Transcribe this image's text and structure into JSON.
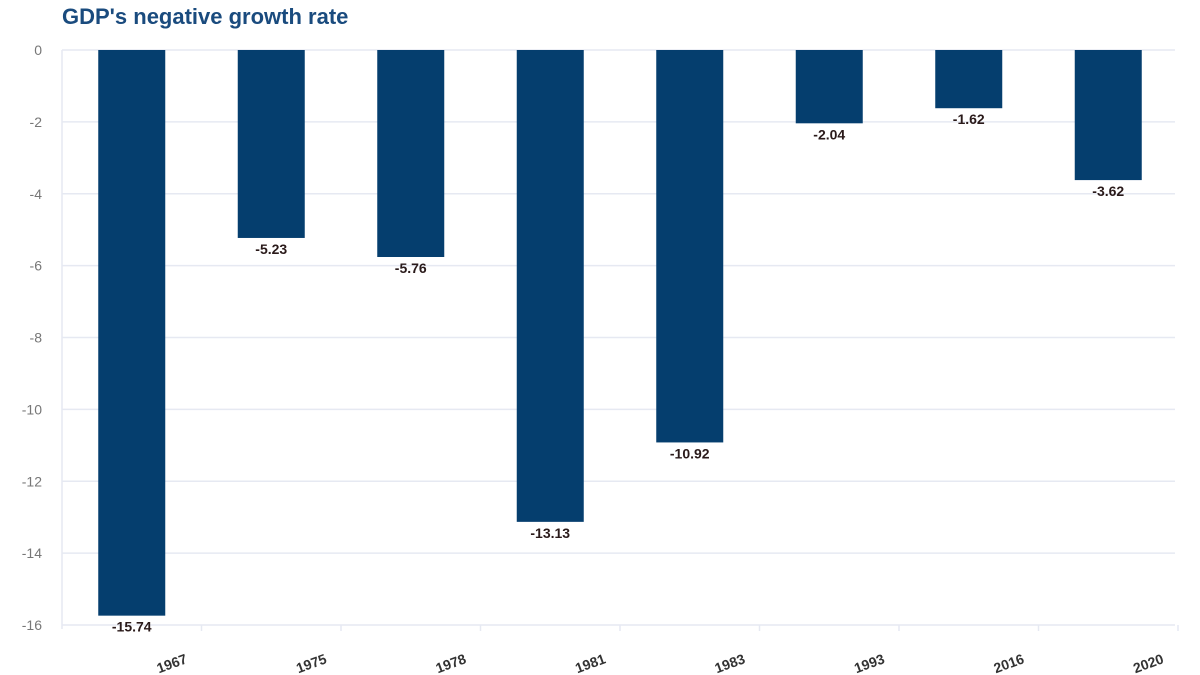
{
  "chart_data": {
    "type": "bar",
    "title": "GDP's negative growth rate",
    "categories": [
      "1967",
      "1975",
      "1978",
      "1981",
      "1983",
      "1993",
      "2016",
      "2020"
    ],
    "values": [
      -15.74,
      -5.23,
      -5.76,
      -13.13,
      -10.92,
      -2.04,
      -1.62,
      -3.62
    ],
    "data_labels": [
      "-15.74",
      "-5.23",
      "-5.76",
      "-13.13",
      "-10.92",
      "-2.04",
      "-1.62",
      "-3.62"
    ],
    "yticks": [
      0,
      -2,
      -4,
      -6,
      -8,
      -10,
      -12,
      -14,
      -16
    ],
    "ylim": [
      -16,
      0
    ],
    "xlabel": "",
    "ylabel": "",
    "grid": true,
    "colors": {
      "bar": "#053e6e",
      "grid": "#e6e9f2",
      "title": "#1a4b7e"
    }
  }
}
